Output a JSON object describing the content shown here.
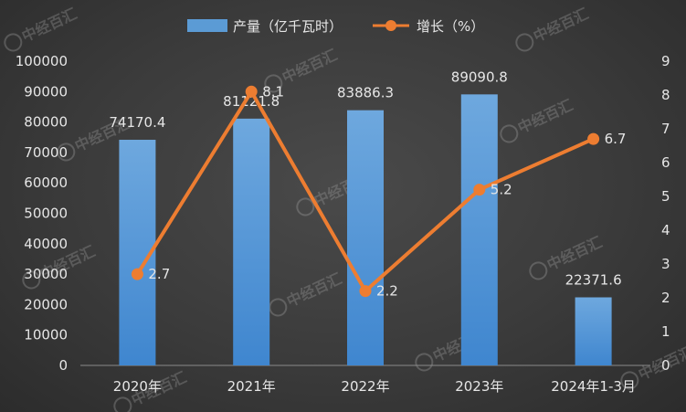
{
  "chart_data": {
    "type": "bar",
    "categories": [
      "2020年",
      "2021年",
      "2022年",
      "2023年",
      "2024年1-3月"
    ],
    "series": [
      {
        "name": "产量（亿千瓦时）",
        "type": "bar",
        "axis": "left",
        "values": [
          74170.4,
          81121.8,
          83886.3,
          89090.8,
          22371.6
        ],
        "labels": [
          "74170.4",
          "81121.8",
          "83886.3",
          "89090.8",
          "22371.6"
        ],
        "color": "#5b9bd5"
      },
      {
        "name": "增长（%）",
        "type": "line",
        "axis": "right",
        "values": [
          2.7,
          8.1,
          2.2,
          5.2,
          6.7
        ],
        "labels": [
          "2.7",
          "8.1",
          "2.2",
          "5.2",
          "6.7"
        ],
        "color": "#ed7d31"
      }
    ],
    "y_left": {
      "min": 0,
      "max": 100000,
      "ticks": [
        "0",
        "10000",
        "20000",
        "30000",
        "40000",
        "50000",
        "60000",
        "70000",
        "80000",
        "90000",
        "100000"
      ]
    },
    "y_right": {
      "min": 0,
      "max": 9,
      "ticks": [
        "0",
        "1",
        "2",
        "3",
        "4",
        "5",
        "6",
        "7",
        "8",
        "9"
      ]
    },
    "legend_position": "top",
    "grid": false
  },
  "watermark": "中经百汇",
  "colors": {
    "background": "#3a3a3a",
    "text": "#e6e6e6"
  }
}
